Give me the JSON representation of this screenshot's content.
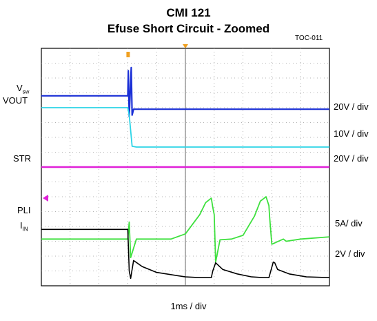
{
  "title": "CMI  121",
  "subtitle": "Efuse Short Circuit - Zoomed",
  "figure_id": "TOC-011",
  "xlabel": "1ms / div",
  "left_labels": {
    "vsw_main": "V",
    "vsw_sub": "sw",
    "vout": "VOUT",
    "str": "STR",
    "pli": "PLI",
    "iin_main": "I",
    "iin_sub": "IN"
  },
  "scale_labels": {
    "vsw": "20V / div",
    "vout": "10V / div",
    "str": "20V / div",
    "iin": "5A/ div",
    "pli": "2V / div"
  },
  "colors": {
    "vsw": "#1a2fd6",
    "vout": "#2bd4e6",
    "str": "#e020d8",
    "iin": "#3ee03e",
    "pli": "#000000",
    "grid": "#9a9a9a",
    "trigger": "#f0a020"
  },
  "chart_data": {
    "type": "line",
    "title": "CMI  121",
    "subtitle": "Efuse Short Circuit - Zoomed",
    "xlabel": "1ms / div",
    "x_unit": "div",
    "xlim": [
      0,
      10
    ],
    "y_unit": "div",
    "upper_panel_ylim": [
      0,
      8
    ],
    "lower_panel_ylim": [
      0,
      8
    ],
    "grid": true,
    "series": [
      {
        "name": "Vsw",
        "scale": "20V / div",
        "panel": "upper",
        "x": [
          0,
          3.0,
          3.02,
          3.05,
          3.12,
          3.15,
          3.2,
          3.3,
          10
        ],
        "y": [
          4.8,
          4.8,
          6.5,
          3.4,
          6.7,
          3.5,
          3.9,
          3.9,
          3.9
        ]
      },
      {
        "name": "VOUT",
        "scale": "10V / div",
        "panel": "upper",
        "x": [
          0,
          3.0,
          3.05,
          3.15,
          3.3,
          10
        ],
        "y": [
          4.0,
          4.0,
          3.5,
          1.4,
          1.35,
          1.35
        ]
      },
      {
        "name": "STR",
        "scale": "20V / div",
        "panel": "upper",
        "x": [
          0,
          10
        ],
        "y": [
          0.0,
          0.0
        ]
      },
      {
        "name": "IIN",
        "scale": "5A/ div",
        "panel": "lower",
        "x": [
          0,
          3.0,
          3.05,
          3.1,
          3.3,
          4.0,
          4.5,
          5.0,
          5.5,
          5.7,
          5.9,
          5.95,
          6.0,
          6.05,
          6.2,
          6.6,
          7.0,
          7.4,
          7.6,
          7.8,
          7.9,
          7.92,
          8.0,
          8.4,
          8.5,
          9.0,
          10
        ],
        "y": [
          3.15,
          3.15,
          4.3,
          1.9,
          3.15,
          3.15,
          3.15,
          3.5,
          4.8,
          5.6,
          5.9,
          5.3,
          4.8,
          1.6,
          3.1,
          3.15,
          3.4,
          4.7,
          5.7,
          6.0,
          5.4,
          4.7,
          2.8,
          3.15,
          3.0,
          3.15,
          3.3
        ]
      },
      {
        "name": "PLI",
        "scale": "2V / div",
        "panel": "lower",
        "x": [
          0,
          3.0,
          3.05,
          3.1,
          3.2,
          3.5,
          4.0,
          5.0,
          5.5,
          5.9,
          5.95,
          6.05,
          6.3,
          6.8,
          7.3,
          7.7,
          7.9,
          8.05,
          8.1,
          8.2,
          8.6,
          9.2,
          10
        ],
        "y": [
          3.8,
          3.8,
          1.0,
          0.5,
          1.7,
          1.3,
          0.9,
          0.6,
          0.55,
          0.55,
          1.0,
          1.55,
          1.1,
          0.8,
          0.6,
          0.55,
          0.55,
          1.6,
          1.55,
          1.1,
          0.8,
          0.6,
          0.55
        ]
      }
    ]
  }
}
